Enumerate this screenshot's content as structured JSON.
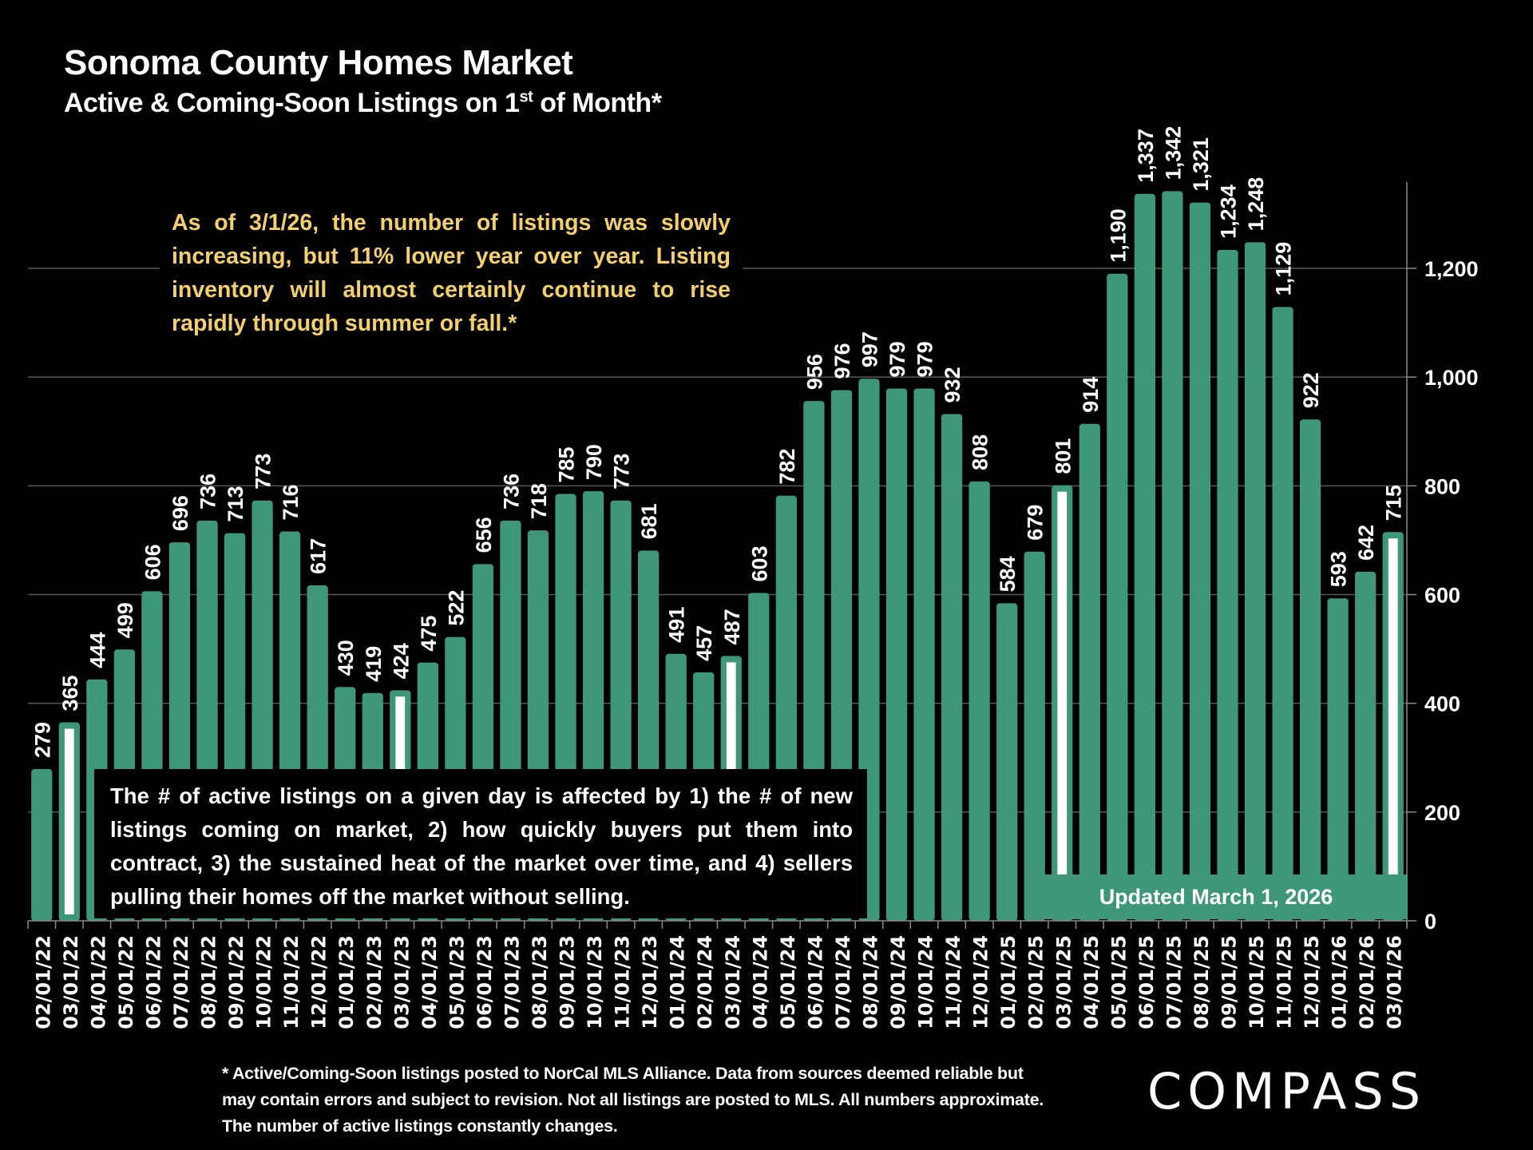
{
  "header": {
    "title": "Sonoma County Homes Market",
    "subtitle_main": "Active & Coming-Soon Listings on 1",
    "subtitle_sup": "st",
    "subtitle_end": " of Month*"
  },
  "annotations": {
    "gold_note": "As of 3/1/26, the number of listings was slowly increasing, but 11% lower year over year. Listing inventory will almost certainly continue to rise rapidly through summer or fall.*",
    "black_note": "The # of active listings on a given day is affected by 1) the # of new listings coming on market, 2) how quickly buyers put them into contract, 3) the sustained heat of the market over time, and 4) sellers pulling their homes off the market without selling.",
    "updated": "Updated March 1, 2026"
  },
  "footnote": "* Active/Coming-Soon listings posted to NorCal MLS Alliance.  Data from sources deemed reliable but may contain errors and subject to revision.  Not all listings are posted to MLS. All numbers approximate. The number of active listings constantly changes.",
  "brand": {
    "logo_text": "COMPASS"
  },
  "colors": {
    "bar": "#3e977b",
    "highlight": "#ffffff",
    "gold": "#f4cf6e",
    "background": "#000000",
    "grid": "#595959"
  },
  "chart_data": {
    "type": "bar",
    "title": "Sonoma County Homes Market",
    "subtitle": "Active & Coming-Soon Listings on 1st of Month*",
    "xlabel": "",
    "ylabel": "",
    "y_axis_side": "right",
    "ylim": [
      0,
      1350
    ],
    "yticks": [
      0,
      200,
      400,
      600,
      800,
      1000,
      1200
    ],
    "ytick_labels": [
      "0",
      "200",
      "400",
      "600",
      "800",
      "1,000",
      "1,200"
    ],
    "grid": true,
    "categories": [
      "02/01/22",
      "03/01/22",
      "04/01/22",
      "05/01/22",
      "06/01/22",
      "07/01/22",
      "08/01/22",
      "09/01/22",
      "10/01/22",
      "11/01/22",
      "12/01/22",
      "01/01/23",
      "02/01/23",
      "03/01/23",
      "04/01/23",
      "05/01/23",
      "06/01/23",
      "07/01/23",
      "08/01/23",
      "09/01/23",
      "10/01/23",
      "11/01/23",
      "12/01/23",
      "01/01/24",
      "02/01/24",
      "03/01/24",
      "04/01/24",
      "05/01/24",
      "06/01/24",
      "07/01/24",
      "08/01/24",
      "09/01/24",
      "10/01/24",
      "11/01/24",
      "12/01/24",
      "01/01/25",
      "02/01/25",
      "03/01/25",
      "04/01/25",
      "05/01/25",
      "06/01/25",
      "07/01/25",
      "08/01/25",
      "09/01/25",
      "10/01/25",
      "11/01/25",
      "12/01/25",
      "01/01/26",
      "02/01/26",
      "03/01/26"
    ],
    "values": [
      279,
      365,
      444,
      499,
      606,
      696,
      736,
      713,
      773,
      716,
      617,
      430,
      419,
      424,
      475,
      522,
      656,
      736,
      718,
      785,
      790,
      773,
      681,
      491,
      457,
      487,
      603,
      782,
      956,
      976,
      997,
      979,
      979,
      932,
      808,
      584,
      679,
      801,
      914,
      1190,
      1337,
      1342,
      1321,
      1234,
      1248,
      1129,
      922,
      593,
      642,
      715
    ],
    "value_labels": [
      "279",
      "365",
      "444",
      "499",
      "606",
      "696",
      "736",
      "713",
      "773",
      "716",
      "617",
      "430",
      "419",
      "424",
      "475",
      "522",
      "656",
      "736",
      "718",
      "785",
      "790",
      "773",
      "681",
      "491",
      "457",
      "487",
      "603",
      "782",
      "956",
      "976",
      "997",
      "979",
      "979",
      "932",
      "808",
      "584",
      "679",
      "801",
      "914",
      "1,190",
      "1,337",
      "1,342",
      "1,321",
      "1,234",
      "1,248",
      "1,129",
      "922",
      "593",
      "642",
      "715"
    ],
    "highlighted_categories": [
      "03/01/22",
      "03/01/23",
      "03/01/24",
      "03/01/25",
      "03/01/26"
    ],
    "legend": "none"
  }
}
